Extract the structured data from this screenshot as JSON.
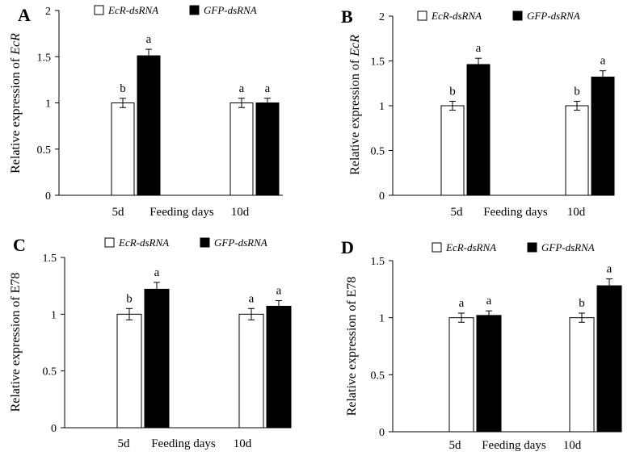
{
  "chart_data": [
    {
      "type": "bar",
      "panel": "A",
      "ylabel_prefix": "Relative expression of ",
      "ylabel_gene": "EcR",
      "gene_italic": true,
      "xlabel": "Feeding days",
      "categories": [
        "5d",
        "10d"
      ],
      "ylim": [
        0,
        2
      ],
      "yticks": [
        "0",
        "0.5",
        "1",
        "1.5",
        "2"
      ],
      "ytick_values": [
        0,
        0.5,
        1,
        1.5,
        2
      ],
      "legend": [
        "EcR-dsRNA",
        "GFP-dsRNA"
      ],
      "series": [
        {
          "name": "EcR-dsRNA",
          "color": "#ffffff",
          "values": [
            1.0,
            1.0
          ],
          "errors": [
            0.05,
            0.05
          ],
          "letters": [
            "b",
            "a"
          ]
        },
        {
          "name": "GFP-dsRNA",
          "color": "#000000",
          "values": [
            1.51,
            1.0
          ],
          "errors": [
            0.07,
            0.05
          ],
          "letters": [
            "a",
            "a"
          ]
        }
      ]
    },
    {
      "type": "bar",
      "panel": "B",
      "ylabel_prefix": "Relative expression of ",
      "ylabel_gene": "EcR",
      "gene_italic": true,
      "xlabel": "Feeding days",
      "categories": [
        "5d",
        "10d"
      ],
      "ylim": [
        0,
        2
      ],
      "yticks": [
        "0",
        "0.5",
        "1",
        "1.5",
        "2"
      ],
      "ytick_values": [
        0,
        0.5,
        1,
        1.5,
        2
      ],
      "legend": [
        "EcR-dsRNA",
        "GFP-dsRNA"
      ],
      "series": [
        {
          "name": "EcR-dsRNA",
          "color": "#ffffff",
          "values": [
            1.0,
            1.0
          ],
          "errors": [
            0.05,
            0.05
          ],
          "letters": [
            "b",
            "b"
          ]
        },
        {
          "name": "GFP-dsRNA",
          "color": "#000000",
          "values": [
            1.46,
            1.32
          ],
          "errors": [
            0.07,
            0.07
          ],
          "letters": [
            "a",
            "a"
          ]
        }
      ]
    },
    {
      "type": "bar",
      "panel": "C",
      "ylabel_prefix": "Relative expression of E78",
      "ylabel_gene": "",
      "gene_italic": false,
      "xlabel": "Feeding days",
      "categories": [
        "5d",
        "10d"
      ],
      "ylim": [
        0,
        1.5
      ],
      "yticks": [
        "0",
        "0.5",
        "1",
        "1.5"
      ],
      "ytick_values": [
        0,
        0.5,
        1,
        1.5
      ],
      "legend": [
        "EcR-dsRNA",
        "GFP-dsRNA"
      ],
      "series": [
        {
          "name": "EcR-dsRNA",
          "color": "#ffffff",
          "values": [
            1.0,
            1.0
          ],
          "errors": [
            0.05,
            0.05
          ],
          "letters": [
            "b",
            "a"
          ]
        },
        {
          "name": "GFP-dsRNA",
          "color": "#000000",
          "values": [
            1.22,
            1.07
          ],
          "errors": [
            0.06,
            0.05
          ],
          "letters": [
            "a",
            "a"
          ]
        }
      ]
    },
    {
      "type": "bar",
      "panel": "D",
      "ylabel_prefix": "Relative expression of E78",
      "ylabel_gene": "",
      "gene_italic": false,
      "xlabel": "Feeding days",
      "categories": [
        "5d",
        "10d"
      ],
      "ylim": [
        0,
        1.5
      ],
      "yticks": [
        "0",
        "0.5",
        "1",
        "1.5"
      ],
      "ytick_values": [
        0,
        0.5,
        1,
        1.5
      ],
      "legend": [
        "EcR-dsRNA",
        "GFP-dsRNA"
      ],
      "series": [
        {
          "name": "EcR-dsRNA",
          "color": "#ffffff",
          "values": [
            1.0,
            1.0
          ],
          "errors": [
            0.04,
            0.04
          ],
          "letters": [
            "a",
            "b"
          ]
        },
        {
          "name": "GFP-dsRNA",
          "color": "#000000",
          "values": [
            1.02,
            1.28
          ],
          "errors": [
            0.04,
            0.06
          ],
          "letters": [
            "a",
            "a"
          ]
        }
      ]
    }
  ]
}
